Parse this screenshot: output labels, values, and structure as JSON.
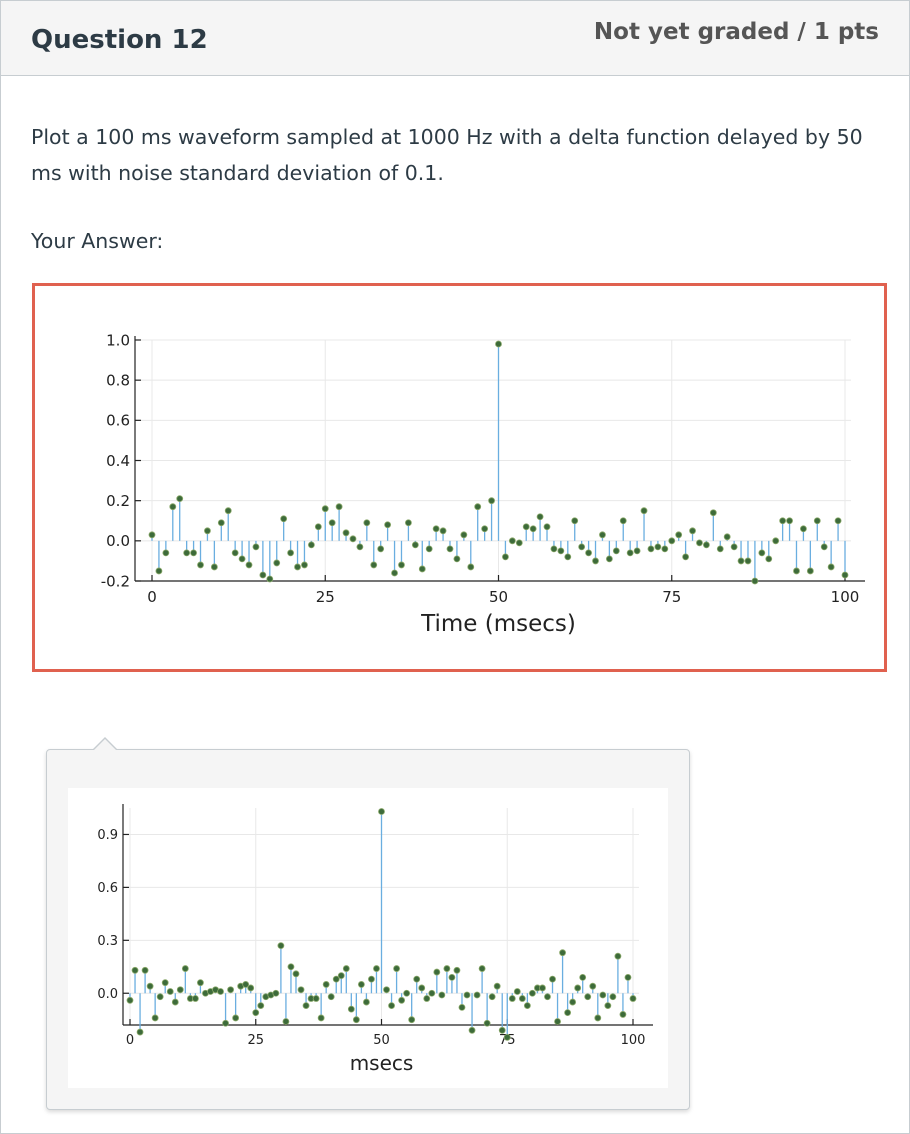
{
  "question": {
    "title": "Question 12",
    "grade": "Not yet graded / 1 pts",
    "text": "Plot a 100 ms waveform sampled at 1000 Hz with a delta function delayed by 50 ms with noise standard deviation of 0.1."
  },
  "answer_label": "Your Answer:",
  "colors": {
    "stem": "#6aaee0",
    "marker": "#3d6b3a",
    "highlight_border": "#e0614f",
    "grid": "#e8e8e8"
  },
  "chart_data": [
    {
      "type": "scatter",
      "style": "stem",
      "title": "",
      "xlabel": "Time (msecs)",
      "ylabel": "",
      "xlim": [
        0,
        100
      ],
      "ylim": [
        -0.2,
        1.0
      ],
      "xticks": [
        0,
        25,
        50,
        75,
        100
      ],
      "yticks": [
        1.0,
        0.8,
        0.6,
        0.4,
        0.2,
        0.0,
        -0.2
      ],
      "ytick_labels": [
        "1.0",
        "0.8",
        "0.6",
        "0.4",
        "0.2",
        "0.0",
        "-0.2"
      ],
      "xtick_labels": [
        "0",
        "25",
        "50",
        "75",
        "100"
      ],
      "grid": true,
      "y": [
        0.03,
        -0.15,
        -0.06,
        0.17,
        0.21,
        -0.06,
        -0.06,
        -0.12,
        0.05,
        -0.13,
        0.09,
        0.15,
        -0.06,
        -0.09,
        -0.12,
        -0.03,
        -0.17,
        -0.19,
        -0.11,
        0.11,
        -0.06,
        -0.13,
        -0.12,
        -0.02,
        0.07,
        0.16,
        0.09,
        0.17,
        0.04,
        0.01,
        -0.03,
        0.09,
        -0.12,
        -0.04,
        0.08,
        -0.16,
        -0.12,
        0.09,
        -0.02,
        -0.14,
        -0.04,
        0.06,
        0.05,
        -0.04,
        -0.09,
        0.03,
        -0.13,
        0.17,
        0.06,
        0.2,
        0.98,
        -0.08,
        0.0,
        -0.01,
        0.07,
        0.06,
        0.12,
        0.07,
        -0.04,
        -0.05,
        -0.08,
        0.1,
        -0.03,
        -0.06,
        -0.1,
        0.03,
        -0.09,
        -0.05,
        0.1,
        -0.06,
        -0.05,
        0.15,
        -0.04,
        -0.03,
        -0.04,
        0.0,
        0.03,
        -0.08,
        0.05,
        -0.01,
        -0.02,
        0.14,
        -0.04,
        0.02,
        -0.03,
        -0.1,
        -0.1,
        -0.2,
        -0.06,
        -0.09,
        0.0,
        0.1,
        0.1,
        -0.15,
        0.06,
        -0.15,
        0.1,
        -0.03,
        -0.13,
        0.1,
        -0.17
      ]
    },
    {
      "type": "scatter",
      "style": "stem",
      "title": "",
      "xlabel": "msecs",
      "ylabel": "",
      "xlim": [
        0,
        100
      ],
      "ylim": [
        -0.18,
        1.05
      ],
      "xticks": [
        0,
        25,
        50,
        75,
        100
      ],
      "yticks": [
        0.9,
        0.6,
        0.3,
        0.0
      ],
      "ytick_labels": [
        "0.9",
        "0.6",
        "0.3",
        "0.0"
      ],
      "xtick_labels": [
        "0",
        "25",
        "50",
        "75",
        "100"
      ],
      "grid": true,
      "y": [
        -0.04,
        0.13,
        -0.22,
        0.13,
        0.04,
        -0.14,
        -0.02,
        0.06,
        0.01,
        -0.05,
        0.02,
        0.14,
        -0.03,
        -0.03,
        0.06,
        0.0,
        0.01,
        0.02,
        0.01,
        -0.17,
        0.02,
        -0.14,
        0.04,
        0.05,
        0.03,
        -0.11,
        -0.07,
        -0.02,
        -0.01,
        0.0,
        0.27,
        -0.16,
        0.15,
        0.11,
        0.02,
        -0.07,
        -0.03,
        -0.03,
        -0.14,
        0.05,
        -0.02,
        0.08,
        0.1,
        0.14,
        -0.09,
        -0.15,
        0.05,
        -0.05,
        0.08,
        0.14,
        1.03,
        0.02,
        -0.07,
        0.14,
        -0.04,
        0.0,
        -0.15,
        0.08,
        0.03,
        -0.03,
        0.0,
        0.12,
        -0.01,
        0.14,
        0.09,
        0.13,
        -0.08,
        -0.01,
        -0.21,
        -0.01,
        0.14,
        -0.17,
        -0.02,
        0.04,
        -0.21,
        -0.25,
        -0.03,
        0.01,
        -0.03,
        -0.07,
        0.0,
        0.03,
        0.03,
        -0.02,
        0.08,
        -0.16,
        0.23,
        -0.11,
        -0.05,
        0.03,
        0.09,
        -0.02,
        0.04,
        -0.14,
        -0.01,
        -0.07,
        -0.02,
        0.21,
        -0.12,
        0.09,
        -0.03
      ]
    }
  ]
}
